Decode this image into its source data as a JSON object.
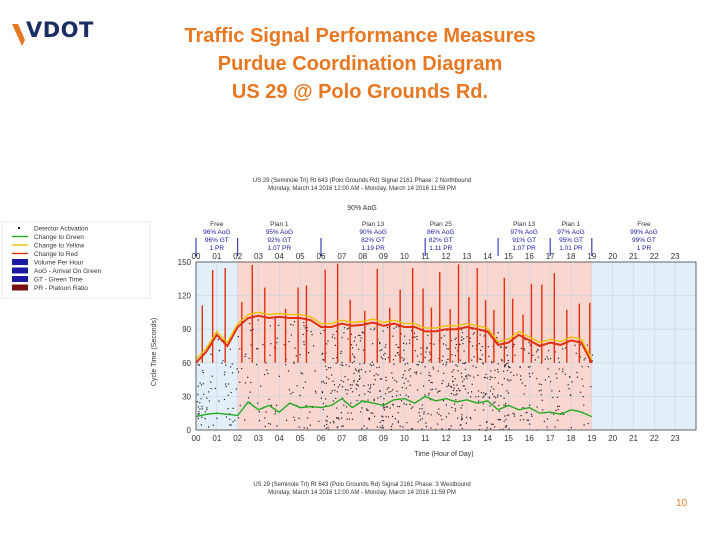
{
  "logo": {
    "text": "VDOT"
  },
  "slide": {
    "title_line1": "Traffic Signal Performance Measures",
    "title_line2": "Purdue Coordination Diagram",
    "title_line3": "US 29 @ Polo Grounds Rd.",
    "page_number": "10"
  },
  "colors": {
    "title": "#e87722",
    "logo": "#1c2f64",
    "plan_background": "#f9d6d0",
    "free_background": "#e3eff8",
    "green_line": "#22aa22",
    "red_line": "#e03010",
    "yellow_line": "#f0c000",
    "detector_dots": "#222222"
  },
  "chart_data": [
    {
      "type": "scatter",
      "title": "US 29 (Seminole Trl) Rt 643 (Polo Grounds Rd) Signal 2161 Phase: 2 Northbound",
      "subtitle": "Monday, March 14 2016 12:00 AM - Monday, March 14 2016 11:59 PM",
      "overall_aog": "90% AoG",
      "xlabel": "Time (Hour of Day)",
      "ylabel": "Cycle Time (Seconds)",
      "x_ticks": [
        "00",
        "01",
        "02",
        "03",
        "04",
        "05",
        "06",
        "07",
        "08",
        "09",
        "10",
        "11",
        "12",
        "13",
        "14",
        "15",
        "16",
        "17",
        "18",
        "19",
        "20",
        "21",
        "22",
        "23"
      ],
      "y_ticks": [
        "0",
        "30",
        "60",
        "90",
        "120",
        "150"
      ],
      "xlim": [
        0,
        24
      ],
      "ylim": [
        0,
        150
      ],
      "plans": [
        {
          "name": "Free",
          "start": 0,
          "end": 2,
          "aog": "96% AoG",
          "gt": "96% GT",
          "pr": "1 PR"
        },
        {
          "name": "Plan 1",
          "start": 2,
          "end": 6,
          "aog": "95% AoG",
          "gt": "92% GT",
          "pr": "1.07 PR"
        },
        {
          "name": "Plan 13",
          "start": 6,
          "end": 11,
          "aog": "90% AoG",
          "gt": "82% GT",
          "pr": "1.19 PR"
        },
        {
          "name": "Plan 25",
          "start": 11,
          "end": 12.5,
          "aog": "86% AoG",
          "gt": "82% GT",
          "pr": "1.11 PR"
        },
        {
          "name": "Plan 13",
          "start": 14.5,
          "end": 17,
          "aog": "97% AoG",
          "gt": "91% GT",
          "pr": "1.07 PR"
        },
        {
          "name": "Plan 1",
          "start": 17,
          "end": 19,
          "aog": "97% AoG",
          "gt": "95% GT",
          "pr": "1.01 PR"
        },
        {
          "name": "Free",
          "start": 19,
          "end": 24,
          "aog": "99% AoG",
          "gt": "99% GT",
          "pr": "1 PR"
        }
      ],
      "legend_position": "left",
      "series": [
        {
          "name": "Detector Activation",
          "color": "#222222"
        },
        {
          "name": "Change to Green",
          "color": "#22aa22"
        },
        {
          "name": "Change to Yellow",
          "color": "#f0c000"
        },
        {
          "name": "Change to Red",
          "color": "#e03010"
        },
        {
          "name": "Volume Per Hour",
          "color": "#1a1aa0"
        },
        {
          "name": "AoG - Arrival On Green",
          "color": "#1a1aa0"
        },
        {
          "name": "GT - Green Time",
          "color": "#1a1aa0"
        },
        {
          "name": "PR - Platoon Ratio",
          "color": "#7a1010"
        }
      ],
      "green_trace": {
        "x": [
          0,
          0.5,
          1,
          1.5,
          2,
          2.5,
          3,
          3.5,
          4,
          4.5,
          5,
          5.5,
          6,
          6.5,
          7,
          7.5,
          8,
          8.5,
          9,
          9.5,
          10,
          10.5,
          11,
          11.5,
          12,
          12.5,
          13,
          13.5,
          14,
          14.5,
          15,
          15.5,
          16,
          16.5,
          17,
          17.5,
          18,
          18.5,
          19
        ],
        "y": [
          12,
          14,
          15,
          14,
          13,
          25,
          18,
          22,
          16,
          24,
          20,
          21,
          20,
          22,
          28,
          20,
          26,
          24,
          22,
          27,
          28,
          24,
          30,
          26,
          28,
          25,
          27,
          24,
          26,
          18,
          22,
          18,
          20,
          15,
          16,
          14,
          18,
          16,
          12
        ]
      },
      "red_trace": {
        "x": [
          0,
          0.5,
          1,
          1.5,
          2,
          2.5,
          3,
          3.5,
          4,
          4.5,
          5,
          5.5,
          6,
          6.5,
          7,
          7.5,
          8,
          8.5,
          9,
          9.5,
          10,
          10.5,
          11,
          11.5,
          12,
          12.5,
          13,
          13.5,
          14,
          14.5,
          15,
          15.5,
          16,
          16.5,
          17,
          17.5,
          18,
          18.5,
          19
        ],
        "y": [
          60,
          70,
          85,
          75,
          92,
          100,
          102,
          100,
          101,
          100,
          100,
          98,
          92,
          92,
          95,
          93,
          94,
          96,
          93,
          95,
          92,
          92,
          88,
          88,
          90,
          90,
          92,
          90,
          88,
          76,
          78,
          85,
          80,
          75,
          78,
          76,
          80,
          78,
          60
        ]
      },
      "red_spikes_x": [
        0.3,
        0.8,
        1.4,
        2.2,
        2.7,
        3.3,
        3.8,
        4.3,
        4.9,
        5.3,
        6.2,
        6.8,
        7.4,
        8.1,
        8.7,
        9.3,
        9.8,
        10.4,
        10.9,
        11.3,
        11.7,
        12.2,
        12.6,
        13.1,
        13.5,
        13.9,
        14.3,
        14.8,
        15.2,
        15.7,
        16.1,
        16.6,
        17.2,
        17.8,
        18.4,
        18.9
      ]
    },
    {
      "type": "scatter",
      "title": "US 29 (Seminole Trl) Rt 643 (Polo Grounds Rd) Signal 2161 Phase: 3 Westbound",
      "subtitle": "Monday, March 14 2016 12:00 AM - Monday, March 14 2016 11:59 PM"
    }
  ]
}
